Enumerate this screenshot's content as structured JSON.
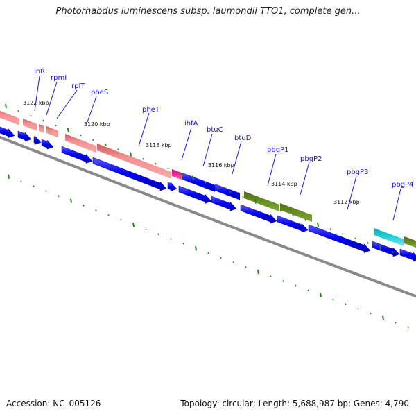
{
  "title": "Photorhabdus luminescens subsp. laumondii TTO1, complete gen...",
  "footer": {
    "accession": "Accession: NC_005126",
    "topology": "Topology: circular; Length: 5,688,987 bp; Genes: 4,790"
  },
  "colors": {
    "backbone": "#888888",
    "cds": "#0000ee",
    "trna": "#f08080",
    "pink": "#e8208c",
    "olive": "#6b8e23",
    "teal": "#20c8d0",
    "tick": "#1e8a1e",
    "label": "#1a1acd"
  },
  "ticks": [
    {
      "label": "3122 kbp"
    },
    {
      "label": "3120 kbp"
    },
    {
      "label": "3118 kbp"
    },
    {
      "label": "3116 kbp"
    },
    {
      "label": "3114 kbp"
    },
    {
      "label": "3112 kbp"
    }
  ],
  "genes": [
    {
      "name": "infC"
    },
    {
      "name": "rpmI"
    },
    {
      "name": "rplT"
    },
    {
      "name": "pheS"
    },
    {
      "name": "pheT"
    },
    {
      "name": "ihfA"
    },
    {
      "name": "btuC"
    },
    {
      "name": "btuD"
    },
    {
      "name": "pbgP1"
    },
    {
      "name": "pbgP2"
    },
    {
      "name": "pbgP3"
    },
    {
      "name": "pbgP4"
    }
  ]
}
